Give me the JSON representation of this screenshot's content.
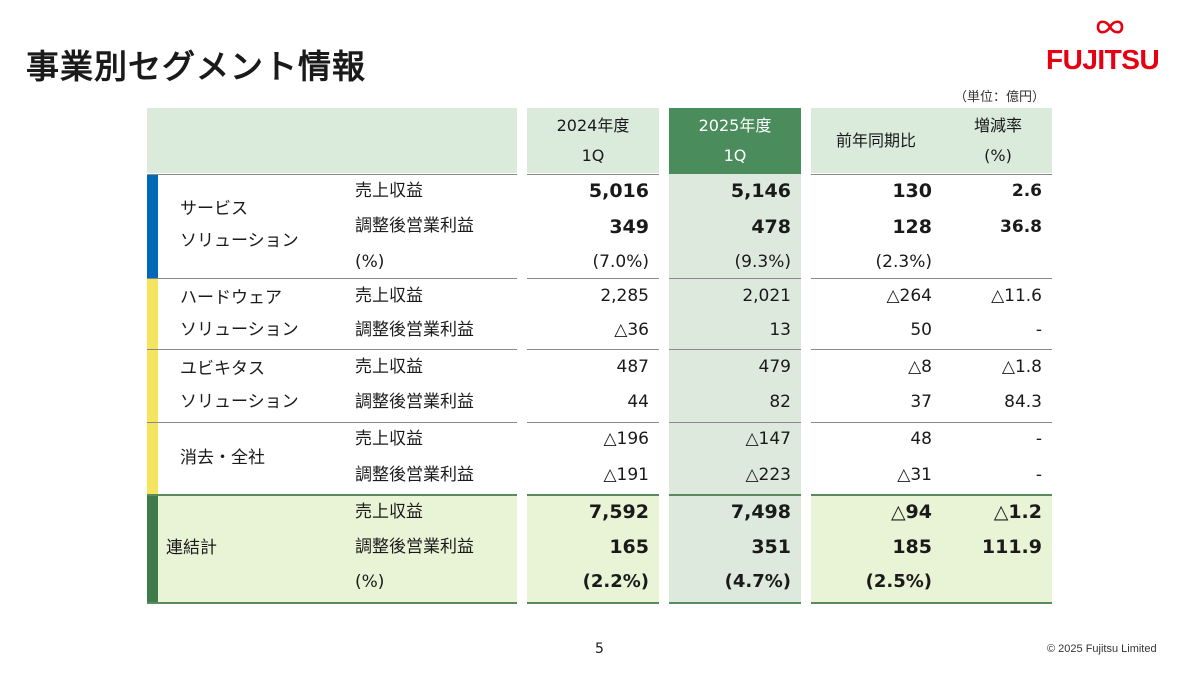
{
  "page": {
    "title": "事業別セグメント情報",
    "unit": "（単位：億円）",
    "page_number": "5",
    "copyright": "© 2025 Fujitsu Limited",
    "logo_text": "FUJITSU"
  },
  "colors": {
    "header_bg": "#dbebdb",
    "highlight_header": "#4a8c5c",
    "highlight_col": "#dde9dd",
    "total_bg": "#e9f3d6",
    "service_bar": "#0068b7",
    "other_bar": "#f4e45e",
    "total_bar": "#3f7a4a",
    "logo_red": "#e60012"
  },
  "header": {
    "fy2024_line1": "2024年度",
    "fy2024_line2": "1Q",
    "fy2025_line1": "2025年度",
    "fy2025_line2": "1Q",
    "yoy": "前年同期比",
    "rate_line1": "増減率",
    "rate_line2": "(%)"
  },
  "segments": {
    "service": {
      "name_line1": "サービス",
      "name_line2": "ソリューション",
      "rows": [
        {
          "label": "売上収益",
          "fy2024": "5,016",
          "fy2025": "5,146",
          "yoy": "130",
          "rate": "2.6"
        },
        {
          "label": "調整後営業利益",
          "fy2024": "349",
          "fy2025": "478",
          "yoy": "128",
          "rate": "36.8"
        },
        {
          "label": "(%)",
          "fy2024": "(7.0%)",
          "fy2025": "(9.3%)",
          "yoy": "(2.3%)",
          "rate": ""
        }
      ]
    },
    "hardware": {
      "name_line1": "ハードウェア",
      "name_line2": "ソリューション",
      "rows": [
        {
          "label": "売上収益",
          "fy2024": "2,285",
          "fy2025": "2,021",
          "yoy": "△264",
          "rate": "△11.6"
        },
        {
          "label": "調整後営業利益",
          "fy2024": "△36",
          "fy2025": "13",
          "yoy": "50",
          "rate": "-"
        }
      ]
    },
    "ubiquitous": {
      "name_line1": "ユビキタス",
      "name_line2": "ソリューション",
      "rows": [
        {
          "label": "売上収益",
          "fy2024": "487",
          "fy2025": "479",
          "yoy": "△8",
          "rate": "△1.8"
        },
        {
          "label": "調整後営業利益",
          "fy2024": "44",
          "fy2025": "82",
          "yoy": "37",
          "rate": "84.3"
        }
      ]
    },
    "elimination": {
      "name": "消去・全社",
      "rows": [
        {
          "label": "売上収益",
          "fy2024": "△196",
          "fy2025": "△147",
          "yoy": "48",
          "rate": "-"
        },
        {
          "label": "調整後営業利益",
          "fy2024": "△191",
          "fy2025": "△223",
          "yoy": "△31",
          "rate": "-"
        }
      ]
    },
    "total": {
      "name": "連結計",
      "rows": [
        {
          "label": "売上収益",
          "fy2024": "7,592",
          "fy2025": "7,498",
          "yoy": "△94",
          "rate": "△1.2"
        },
        {
          "label": "調整後営業利益",
          "fy2024": "165",
          "fy2025": "351",
          "yoy": "185",
          "rate": "111.9"
        },
        {
          "label": "(%)",
          "fy2024": "(2.2%)",
          "fy2025": "(4.7%)",
          "yoy": "(2.5%)",
          "rate": ""
        }
      ]
    }
  }
}
